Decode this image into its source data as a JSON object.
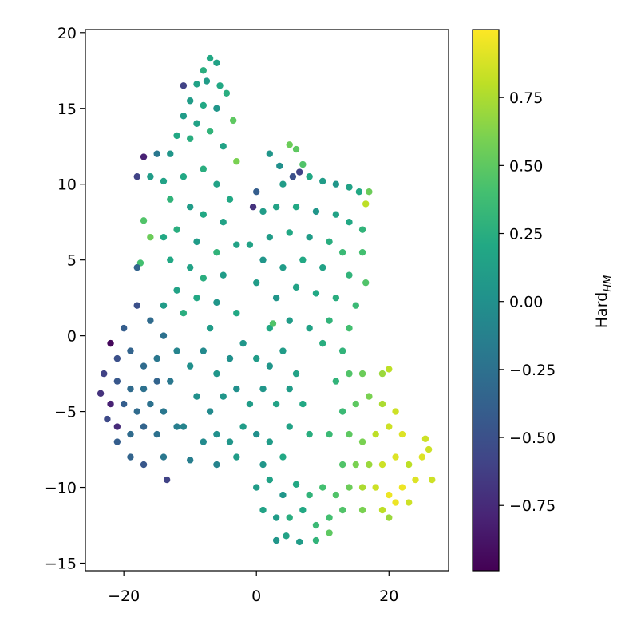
{
  "chart_data": {
    "type": "scatter",
    "xlim": [
      -25.8,
      29
    ],
    "ylim": [
      -15.5,
      20.2
    ],
    "xticks": [
      {
        "value": -20,
        "label": "−20"
      },
      0,
      20
    ],
    "yticks": [
      {
        "value": -15,
        "label": "−15"
      },
      {
        "value": -10,
        "label": "−10"
      },
      {
        "value": -5,
        "label": "−5"
      },
      0,
      5,
      10,
      15,
      20
    ],
    "colorbar": {
      "colormap": "viridis",
      "lim": [
        -0.99,
        1.0
      ],
      "label": "Hard",
      "label_sub": "HM",
      "ticks": [
        {
          "value": -0.75,
          "label": "−0.75"
        },
        {
          "value": -0.5,
          "label": "−0.50"
        },
        {
          "value": -0.25,
          "label": "−0.25"
        },
        {
          "value": 0,
          "label": "0.00"
        },
        {
          "value": 0.25,
          "label": "0.25"
        },
        {
          "value": 0.5,
          "label": "0.50"
        },
        {
          "value": 0.75,
          "label": "0.75"
        }
      ]
    },
    "points": [
      [
        -7,
        18.3,
        0.2
      ],
      [
        -6,
        18.0,
        0.15
      ],
      [
        -8,
        17.5,
        0.25
      ],
      [
        -7.5,
        16.8,
        0.1
      ],
      [
        -5.5,
        16.5,
        0.2
      ],
      [
        -9,
        16.6,
        0.15
      ],
      [
        -11,
        16.5,
        -0.6
      ],
      [
        -10,
        15.5,
        0.1
      ],
      [
        -8,
        15.2,
        0.2
      ],
      [
        -6,
        15.0,
        0.05
      ],
      [
        -4.5,
        16.0,
        0.25
      ],
      [
        -3.5,
        14.2,
        0.5
      ],
      [
        -9,
        14,
        0.15
      ],
      [
        -11,
        14.5,
        0.1
      ],
      [
        -12,
        13.2,
        0.2
      ],
      [
        -10,
        13,
        0.25
      ],
      [
        -7,
        13.5,
        0.3
      ],
      [
        -5,
        12.5,
        0.15
      ],
      [
        -3,
        11.5,
        0.6
      ],
      [
        -13,
        12,
        0.05
      ],
      [
        -15,
        12,
        -0.2
      ],
      [
        -17,
        11.8,
        -0.8
      ],
      [
        -16,
        10.5,
        0.1
      ],
      [
        -18,
        10.5,
        -0.6
      ],
      [
        -14,
        10.2,
        0.15
      ],
      [
        -11,
        10.5,
        0.2
      ],
      [
        -8,
        11,
        0.25
      ],
      [
        -6,
        10,
        0.15
      ],
      [
        -4,
        9,
        0.2
      ],
      [
        -13,
        9,
        0.3
      ],
      [
        -10,
        8.5,
        0.1
      ],
      [
        -8,
        8,
        0.2
      ],
      [
        -5,
        7.5,
        0.15
      ],
      [
        -17,
        7.6,
        0.45
      ],
      [
        -16,
        6.5,
        0.55
      ],
      [
        -14,
        6.5,
        0.2
      ],
      [
        -12,
        7,
        0.25
      ],
      [
        -9,
        6.2,
        0.1
      ],
      [
        -6,
        5.5,
        0.3
      ],
      [
        -3,
        6.0,
        0.15
      ],
      [
        -13,
        5,
        0.2
      ],
      [
        -10,
        4.5,
        0.15
      ],
      [
        -8,
        3.8,
        0.25
      ],
      [
        -5,
        4,
        0.1
      ],
      [
        -17.5,
        4.8,
        0.4
      ],
      [
        -18,
        4.5,
        -0.35
      ],
      [
        -12,
        3,
        0.15
      ],
      [
        -9,
        2.5,
        0.2
      ],
      [
        -6,
        2.2,
        0.05
      ],
      [
        -3,
        1.5,
        0.2
      ],
      [
        -11,
        1.5,
        0.25
      ],
      [
        -14,
        2,
        0.1
      ],
      [
        -7,
        0.5,
        0.1
      ],
      [
        2,
        12,
        0.05
      ],
      [
        3.5,
        11.2,
        0.0
      ],
      [
        5,
        12.6,
        0.55
      ],
      [
        6,
        12.3,
        0.5
      ],
      [
        7,
        11.3,
        0.45
      ],
      [
        5.5,
        10.5,
        -0.5
      ],
      [
        6.5,
        10.8,
        -0.6
      ],
      [
        4,
        10,
        0.1
      ],
      [
        8,
        10.5,
        0.2
      ],
      [
        10,
        10.2,
        0.1
      ],
      [
        12,
        10,
        0.05
      ],
      [
        14,
        9.8,
        0.15
      ],
      [
        15.5,
        9.5,
        0.2
      ],
      [
        17,
        9.5,
        0.55
      ],
      [
        16.5,
        8.7,
        0.8
      ],
      [
        0,
        9.5,
        -0.4
      ],
      [
        -0.5,
        8.5,
        -0.7
      ],
      [
        1,
        8.2,
        0.1
      ],
      [
        3,
        8.5,
        0.15
      ],
      [
        6,
        8.5,
        0.2
      ],
      [
        9,
        8.2,
        0.05
      ],
      [
        12,
        8,
        0.15
      ],
      [
        14,
        7.5,
        0.2
      ],
      [
        16,
        7,
        0.3
      ],
      [
        2,
        6.5,
        0.1
      ],
      [
        5,
        6.8,
        0.2
      ],
      [
        8,
        6.5,
        0.1
      ],
      [
        11,
        6.2,
        0.25
      ],
      [
        13,
        5.5,
        0.35
      ],
      [
        16,
        5.5,
        0.4
      ],
      [
        -1,
        6,
        0.15
      ],
      [
        1,
        5,
        0.05
      ],
      [
        4,
        4.5,
        0.1
      ],
      [
        7,
        5,
        0.2
      ],
      [
        10,
        4.5,
        0.15
      ],
      [
        14,
        4,
        0.3
      ],
      [
        16.5,
        3.5,
        0.45
      ],
      [
        0,
        3.5,
        0.1
      ],
      [
        3,
        2.5,
        0.05
      ],
      [
        6,
        3.2,
        0.15
      ],
      [
        9,
        2.8,
        0.2
      ],
      [
        12,
        2.5,
        0.25
      ],
      [
        15,
        2,
        0.35
      ],
      [
        5,
        1,
        0.1
      ],
      [
        8,
        0.5,
        0.15
      ],
      [
        11,
        1,
        0.3
      ],
      [
        14,
        0.5,
        0.4
      ],
      [
        2,
        0.5,
        0.2
      ],
      [
        2.5,
        0.8,
        0.45
      ],
      [
        10,
        -0.5,
        0.25
      ],
      [
        13,
        -1,
        0.3
      ],
      [
        -22,
        -0.5,
        -0.95
      ],
      [
        -20,
        0.5,
        -0.4
      ],
      [
        -18,
        2,
        -0.5
      ],
      [
        -16,
        1,
        -0.3
      ],
      [
        -14,
        0,
        -0.25
      ],
      [
        -21,
        -1.5,
        -0.5
      ],
      [
        -19,
        -1,
        -0.35
      ],
      [
        -17,
        -2,
        -0.3
      ],
      [
        -15,
        -1.5,
        -0.2
      ],
      [
        -12,
        -1,
        -0.1
      ],
      [
        -23,
        -2.5,
        -0.6
      ],
      [
        -21,
        -3,
        -0.45
      ],
      [
        -19,
        -3.5,
        -0.3
      ],
      [
        -17,
        -3.5,
        -0.25
      ],
      [
        -15,
        -3,
        -0.35
      ],
      [
        -13,
        -3,
        -0.2
      ],
      [
        -23.5,
        -3.8,
        -0.7
      ],
      [
        -22,
        -4.5,
        -0.8
      ],
      [
        -20,
        -4.5,
        -0.4
      ],
      [
        -18,
        -5,
        -0.3
      ],
      [
        -16,
        -4.5,
        -0.25
      ],
      [
        -14,
        -5,
        -0.2
      ],
      [
        -22.5,
        -5.5,
        -0.55
      ],
      [
        -21,
        -6,
        -0.75
      ],
      [
        -19,
        -6.5,
        -0.3
      ],
      [
        -17,
        -6,
        -0.35
      ],
      [
        -15,
        -6.5,
        -0.25
      ],
      [
        -21,
        -7,
        -0.4
      ],
      [
        -19,
        -8,
        -0.35
      ],
      [
        -17,
        -8.5,
        -0.45
      ],
      [
        -14,
        -8,
        -0.2
      ],
      [
        -13.5,
        -9.5,
        -0.6
      ],
      [
        -12,
        -6,
        -0.15
      ],
      [
        -10,
        -2,
        0.0
      ],
      [
        -8,
        -1,
        -0.05
      ],
      [
        -6,
        -2.5,
        0.05
      ],
      [
        -4,
        -1.5,
        0.0
      ],
      [
        -2,
        -0.5,
        0.05
      ],
      [
        0,
        -1.5,
        0.1
      ],
      [
        2,
        -2,
        0.05
      ],
      [
        4,
        -1,
        0.1
      ],
      [
        6,
        -2.5,
        0.15
      ],
      [
        -9,
        -4,
        0.0
      ],
      [
        -7,
        -5,
        -0.05
      ],
      [
        -5,
        -4,
        0.05
      ],
      [
        -3,
        -3.5,
        0.0
      ],
      [
        -1,
        -4.5,
        0.1
      ],
      [
        1,
        -3.5,
        0.05
      ],
      [
        3,
        -4.5,
        0.15
      ],
      [
        5,
        -3.5,
        0.1
      ],
      [
        7,
        -4.5,
        0.2
      ],
      [
        -11,
        -6,
        -0.1
      ],
      [
        -8,
        -7,
        -0.05
      ],
      [
        -6,
        -6.5,
        0.0
      ],
      [
        -4,
        -7,
        0.05
      ],
      [
        -2,
        -6,
        0.1
      ],
      [
        0,
        -6.5,
        0.0
      ],
      [
        2,
        -7,
        0.1
      ],
      [
        5,
        -6,
        0.15
      ],
      [
        8,
        -6.5,
        0.25
      ],
      [
        -10,
        -8.2,
        -0.15
      ],
      [
        -6,
        -8.5,
        -0.1
      ],
      [
        -3,
        -8,
        0.1
      ],
      [
        1,
        -8.5,
        0.05
      ],
      [
        4,
        -8,
        0.2
      ],
      [
        0,
        -10,
        0.1
      ],
      [
        2,
        -9.5,
        0.15
      ],
      [
        4,
        -10.5,
        0.05
      ],
      [
        6,
        -9.8,
        0.2
      ],
      [
        8,
        -10.5,
        0.3
      ],
      [
        10,
        -10,
        0.4
      ],
      [
        12,
        -10.5,
        0.45
      ],
      [
        1,
        -11.5,
        0.15
      ],
      [
        3,
        -12,
        0.1
      ],
      [
        5,
        -12,
        0.25
      ],
      [
        7,
        -11.5,
        0.2
      ],
      [
        9,
        -12.5,
        0.35
      ],
      [
        11,
        -12,
        0.4
      ],
      [
        13,
        -11.5,
        0.45
      ],
      [
        3,
        -13.5,
        0.05
      ],
      [
        4.5,
        -13.2,
        0.15
      ],
      [
        6.5,
        -13.6,
        0.1
      ],
      [
        9,
        -13.5,
        0.3
      ],
      [
        11,
        -13,
        0.5
      ],
      [
        12,
        -3,
        0.3
      ],
      [
        14,
        -2.5,
        0.45
      ],
      [
        16,
        -2.5,
        0.55
      ],
      [
        19,
        -2.5,
        0.7
      ],
      [
        20,
        -2.2,
        0.8
      ],
      [
        13,
        -5,
        0.35
      ],
      [
        15,
        -4.5,
        0.5
      ],
      [
        17,
        -4,
        0.6
      ],
      [
        19,
        -4.5,
        0.75
      ],
      [
        21,
        -5,
        0.85
      ],
      [
        11,
        -6.5,
        0.35
      ],
      [
        14,
        -6.5,
        0.5
      ],
      [
        16,
        -7,
        0.6
      ],
      [
        18,
        -6.5,
        0.8
      ],
      [
        20,
        -6,
        0.85
      ],
      [
        22,
        -6.5,
        0.9
      ],
      [
        25.5,
        -6.8,
        0.85
      ],
      [
        13,
        -8.5,
        0.45
      ],
      [
        15,
        -8.5,
        0.6
      ],
      [
        17,
        -8.5,
        0.7
      ],
      [
        19,
        -8.5,
        0.85
      ],
      [
        21,
        -8,
        0.9
      ],
      [
        23,
        -8.5,
        0.8
      ],
      [
        25,
        -8,
        0.9
      ],
      [
        26,
        -7.5,
        0.85
      ],
      [
        16,
        -10,
        0.75
      ],
      [
        18,
        -10,
        0.85
      ],
      [
        20,
        -10.5,
        0.95
      ],
      [
        22,
        -10,
        0.95
      ],
      [
        24,
        -9.5,
        0.9
      ],
      [
        26.5,
        -9.5,
        0.85
      ],
      [
        19,
        -11.5,
        0.8
      ],
      [
        21,
        -11,
        0.95
      ],
      [
        23,
        -11,
        0.85
      ],
      [
        20,
        -12,
        0.7
      ],
      [
        14,
        -10,
        0.55
      ],
      [
        16,
        -11.5,
        0.6
      ]
    ]
  }
}
